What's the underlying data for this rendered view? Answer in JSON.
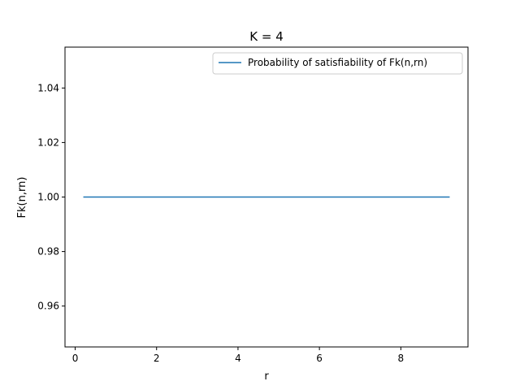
{
  "chart_data": {
    "type": "line",
    "title": "K = 4",
    "xlabel": "r",
    "ylabel": "Fk(n,rn)",
    "xlim": [
      -0.25,
      9.65
    ],
    "ylim": [
      0.945,
      1.055
    ],
    "x_ticks": [
      0,
      2,
      4,
      6,
      8
    ],
    "x_tick_labels": [
      "0",
      "2",
      "4",
      "6",
      "8"
    ],
    "y_ticks": [
      0.96,
      0.98,
      1.0,
      1.02,
      1.04
    ],
    "y_tick_labels": [
      "0.96",
      "0.98",
      "1.00",
      "1.02",
      "1.04"
    ],
    "grid": false,
    "legend_position": "top-right",
    "series": [
      {
        "name": "Probability of satisfiability of Fk(n,rn)",
        "color": "#1f77b4",
        "x": [
          0.2,
          9.2
        ],
        "y": [
          1.0,
          1.0
        ]
      }
    ]
  }
}
